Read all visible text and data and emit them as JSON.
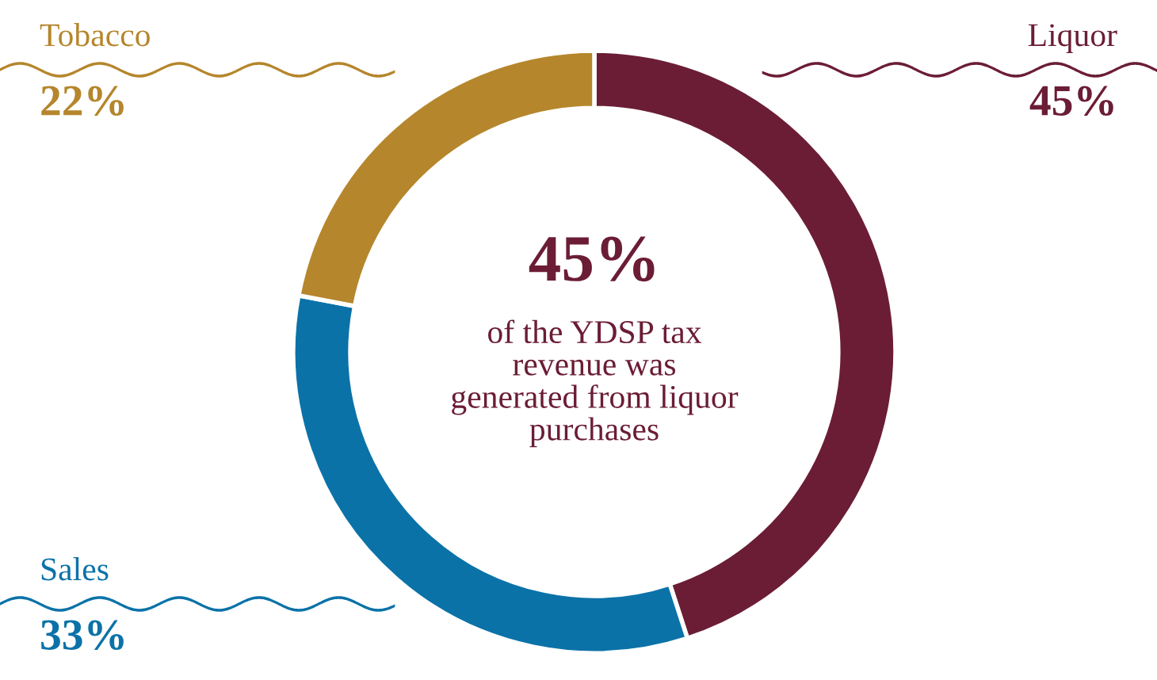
{
  "chart_data": {
    "type": "donut",
    "categories": [
      "Liquor",
      "Sales",
      "Tobacco"
    ],
    "values": [
      45,
      33,
      22
    ],
    "colors": [
      "#6b1d35",
      "#0b72a8",
      "#b5862c"
    ],
    "value_labels": [
      "45%",
      "33%",
      "22%"
    ],
    "annotations": [
      "45%",
      "of the YDSP tax\nrevenue was\ngenerated from liquor\npurchases"
    ],
    "legend": false
  }
}
